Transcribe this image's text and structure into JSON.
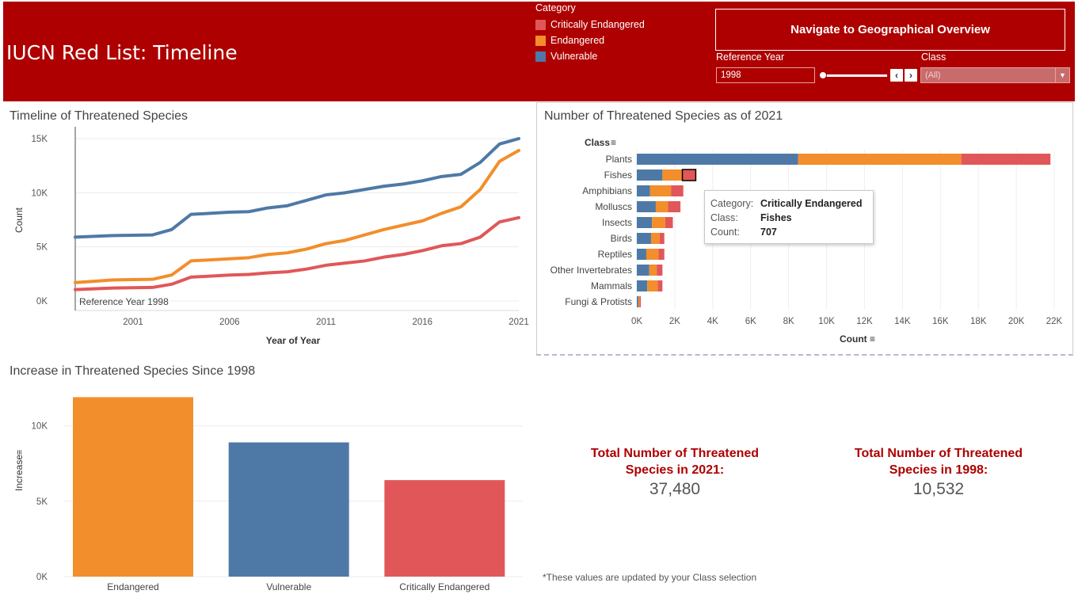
{
  "header": {
    "title": "IUCN Red List: Timeline",
    "nav_button": "Navigate to Geographical Overview",
    "legend_title": "Category",
    "legend": [
      {
        "label": "Critically Endangered",
        "color": "#e15759"
      },
      {
        "label": "Endangered",
        "color": "#f28e2b"
      },
      {
        "label": "Vulnerable",
        "color": "#4e79a7"
      }
    ],
    "reference_year_label": "Reference Year",
    "reference_year_value": "1998",
    "class_label": "Class",
    "class_value": "(All)",
    "prev_icon": "‹",
    "next_icon": "›"
  },
  "tooltip": {
    "category_key": "Category:",
    "category_val": "Critically Endangered",
    "class_key": "Class:",
    "class_val": "Fishes",
    "count_key": "Count:",
    "count_val": "707"
  },
  "kpis": {
    "total_2021_label_1": "Total Number of Threatened",
    "total_2021_label_2": "Species in 2021:",
    "total_2021_value": "37,480",
    "total_1998_label_1": "Total Number of Threatened",
    "total_1998_label_2": "Species in 1998:",
    "total_1998_value": "10,532"
  },
  "footnote": "*These values are updated by your Class selection",
  "chart_data": [
    {
      "type": "line",
      "title": "Timeline of Threatened Species",
      "xlabel": "Year of Year",
      "ylabel": "Count",
      "xlim": [
        1998,
        2021
      ],
      "ylim": [
        0,
        15000
      ],
      "x_ticks": [
        2001,
        2006,
        2011,
        2016,
        2021
      ],
      "y_ticks": [
        0,
        5000,
        10000,
        15000
      ],
      "y_tick_labels": [
        "0K",
        "5K",
        "10K",
        "15K"
      ],
      "reference_line": {
        "x": 1998,
        "label": "Reference Year 1998"
      },
      "grid": true,
      "series": [
        {
          "name": "Vulnerable",
          "color": "#4e79a7",
          "x": [
            1998,
            2000,
            2002,
            2003,
            2004,
            2006,
            2007,
            2008,
            2009,
            2010,
            2011,
            2012,
            2013,
            2014,
            2015,
            2016,
            2017,
            2018,
            2019,
            2020,
            2021
          ],
          "y": [
            5900,
            6050,
            6100,
            6600,
            8000,
            8200,
            8250,
            8600,
            8800,
            9300,
            9800,
            10000,
            10300,
            10600,
            10800,
            11100,
            11500,
            11700,
            12800,
            14500,
            15000
          ]
        },
        {
          "name": "Endangered",
          "color": "#f28e2b",
          "x": [
            1998,
            2000,
            2002,
            2003,
            2004,
            2006,
            2007,
            2008,
            2009,
            2010,
            2011,
            2012,
            2013,
            2014,
            2015,
            2016,
            2017,
            2018,
            2019,
            2020,
            2021
          ],
          "y": [
            1700,
            1950,
            2000,
            2400,
            3700,
            3900,
            4000,
            4300,
            4450,
            4800,
            5300,
            5600,
            6100,
            6600,
            7000,
            7400,
            8100,
            8700,
            10300,
            12900,
            13900
          ]
        },
        {
          "name": "Critically Endangered",
          "color": "#e15759",
          "x": [
            1998,
            2000,
            2002,
            2003,
            2004,
            2006,
            2007,
            2008,
            2009,
            2010,
            2011,
            2012,
            2013,
            2014,
            2015,
            2016,
            2017,
            2018,
            2019,
            2020,
            2021
          ],
          "y": [
            1050,
            1200,
            1250,
            1550,
            2200,
            2400,
            2450,
            2600,
            2700,
            2950,
            3300,
            3500,
            3700,
            4050,
            4300,
            4650,
            5100,
            5300,
            5900,
            7300,
            7700
          ]
        }
      ]
    },
    {
      "type": "bar",
      "orientation": "horizontal",
      "stacked": true,
      "title": "Number of Threatened Species as of 2021",
      "xlabel": "Count",
      "ylabel": "Class",
      "xlim": [
        0,
        22000
      ],
      "x_ticks": [
        0,
        2000,
        4000,
        6000,
        8000,
        10000,
        12000,
        14000,
        16000,
        18000,
        20000,
        22000
      ],
      "x_tick_labels": [
        "0K",
        "2K",
        "4K",
        "6K",
        "8K",
        "10K",
        "12K",
        "14K",
        "16K",
        "18K",
        "20K",
        "22K"
      ],
      "categories": [
        "Plants",
        "Fishes",
        "Amphibians",
        "Molluscs",
        "Insects",
        "Birds",
        "Reptiles",
        "Other Invertebrates",
        "Mammals",
        "Fungi & Protists"
      ],
      "series": [
        {
          "name": "Vulnerable",
          "color": "#4e79a7",
          "values": [
            8500,
            1350,
            700,
            1000,
            800,
            750,
            500,
            650,
            550,
            80
          ]
        },
        {
          "name": "Endangered",
          "color": "#f28e2b",
          "values": [
            8600,
            1050,
            1100,
            650,
            700,
            450,
            650,
            400,
            550,
            70
          ]
        },
        {
          "name": "Critically Endangered",
          "color": "#e15759",
          "values": [
            4700,
            707,
            650,
            650,
            400,
            250,
            300,
            300,
            250,
            60
          ]
        }
      ],
      "highlight": {
        "category": "Fishes",
        "series": "Critically Endangered"
      }
    },
    {
      "type": "bar",
      "title": "Increase in Threatened Species Since 1998",
      "xlabel": "",
      "ylabel": "Increase",
      "ylim": [
        0,
        12500
      ],
      "y_ticks": [
        0,
        5000,
        10000
      ],
      "y_tick_labels": [
        "0K",
        "5K",
        "10K"
      ],
      "categories": [
        "Endangered",
        "Vulnerable",
        "Critically Endangered"
      ],
      "values": [
        11900,
        8900,
        6400
      ],
      "colors": [
        "#f28e2b",
        "#4e79a7",
        "#e15759"
      ]
    }
  ]
}
